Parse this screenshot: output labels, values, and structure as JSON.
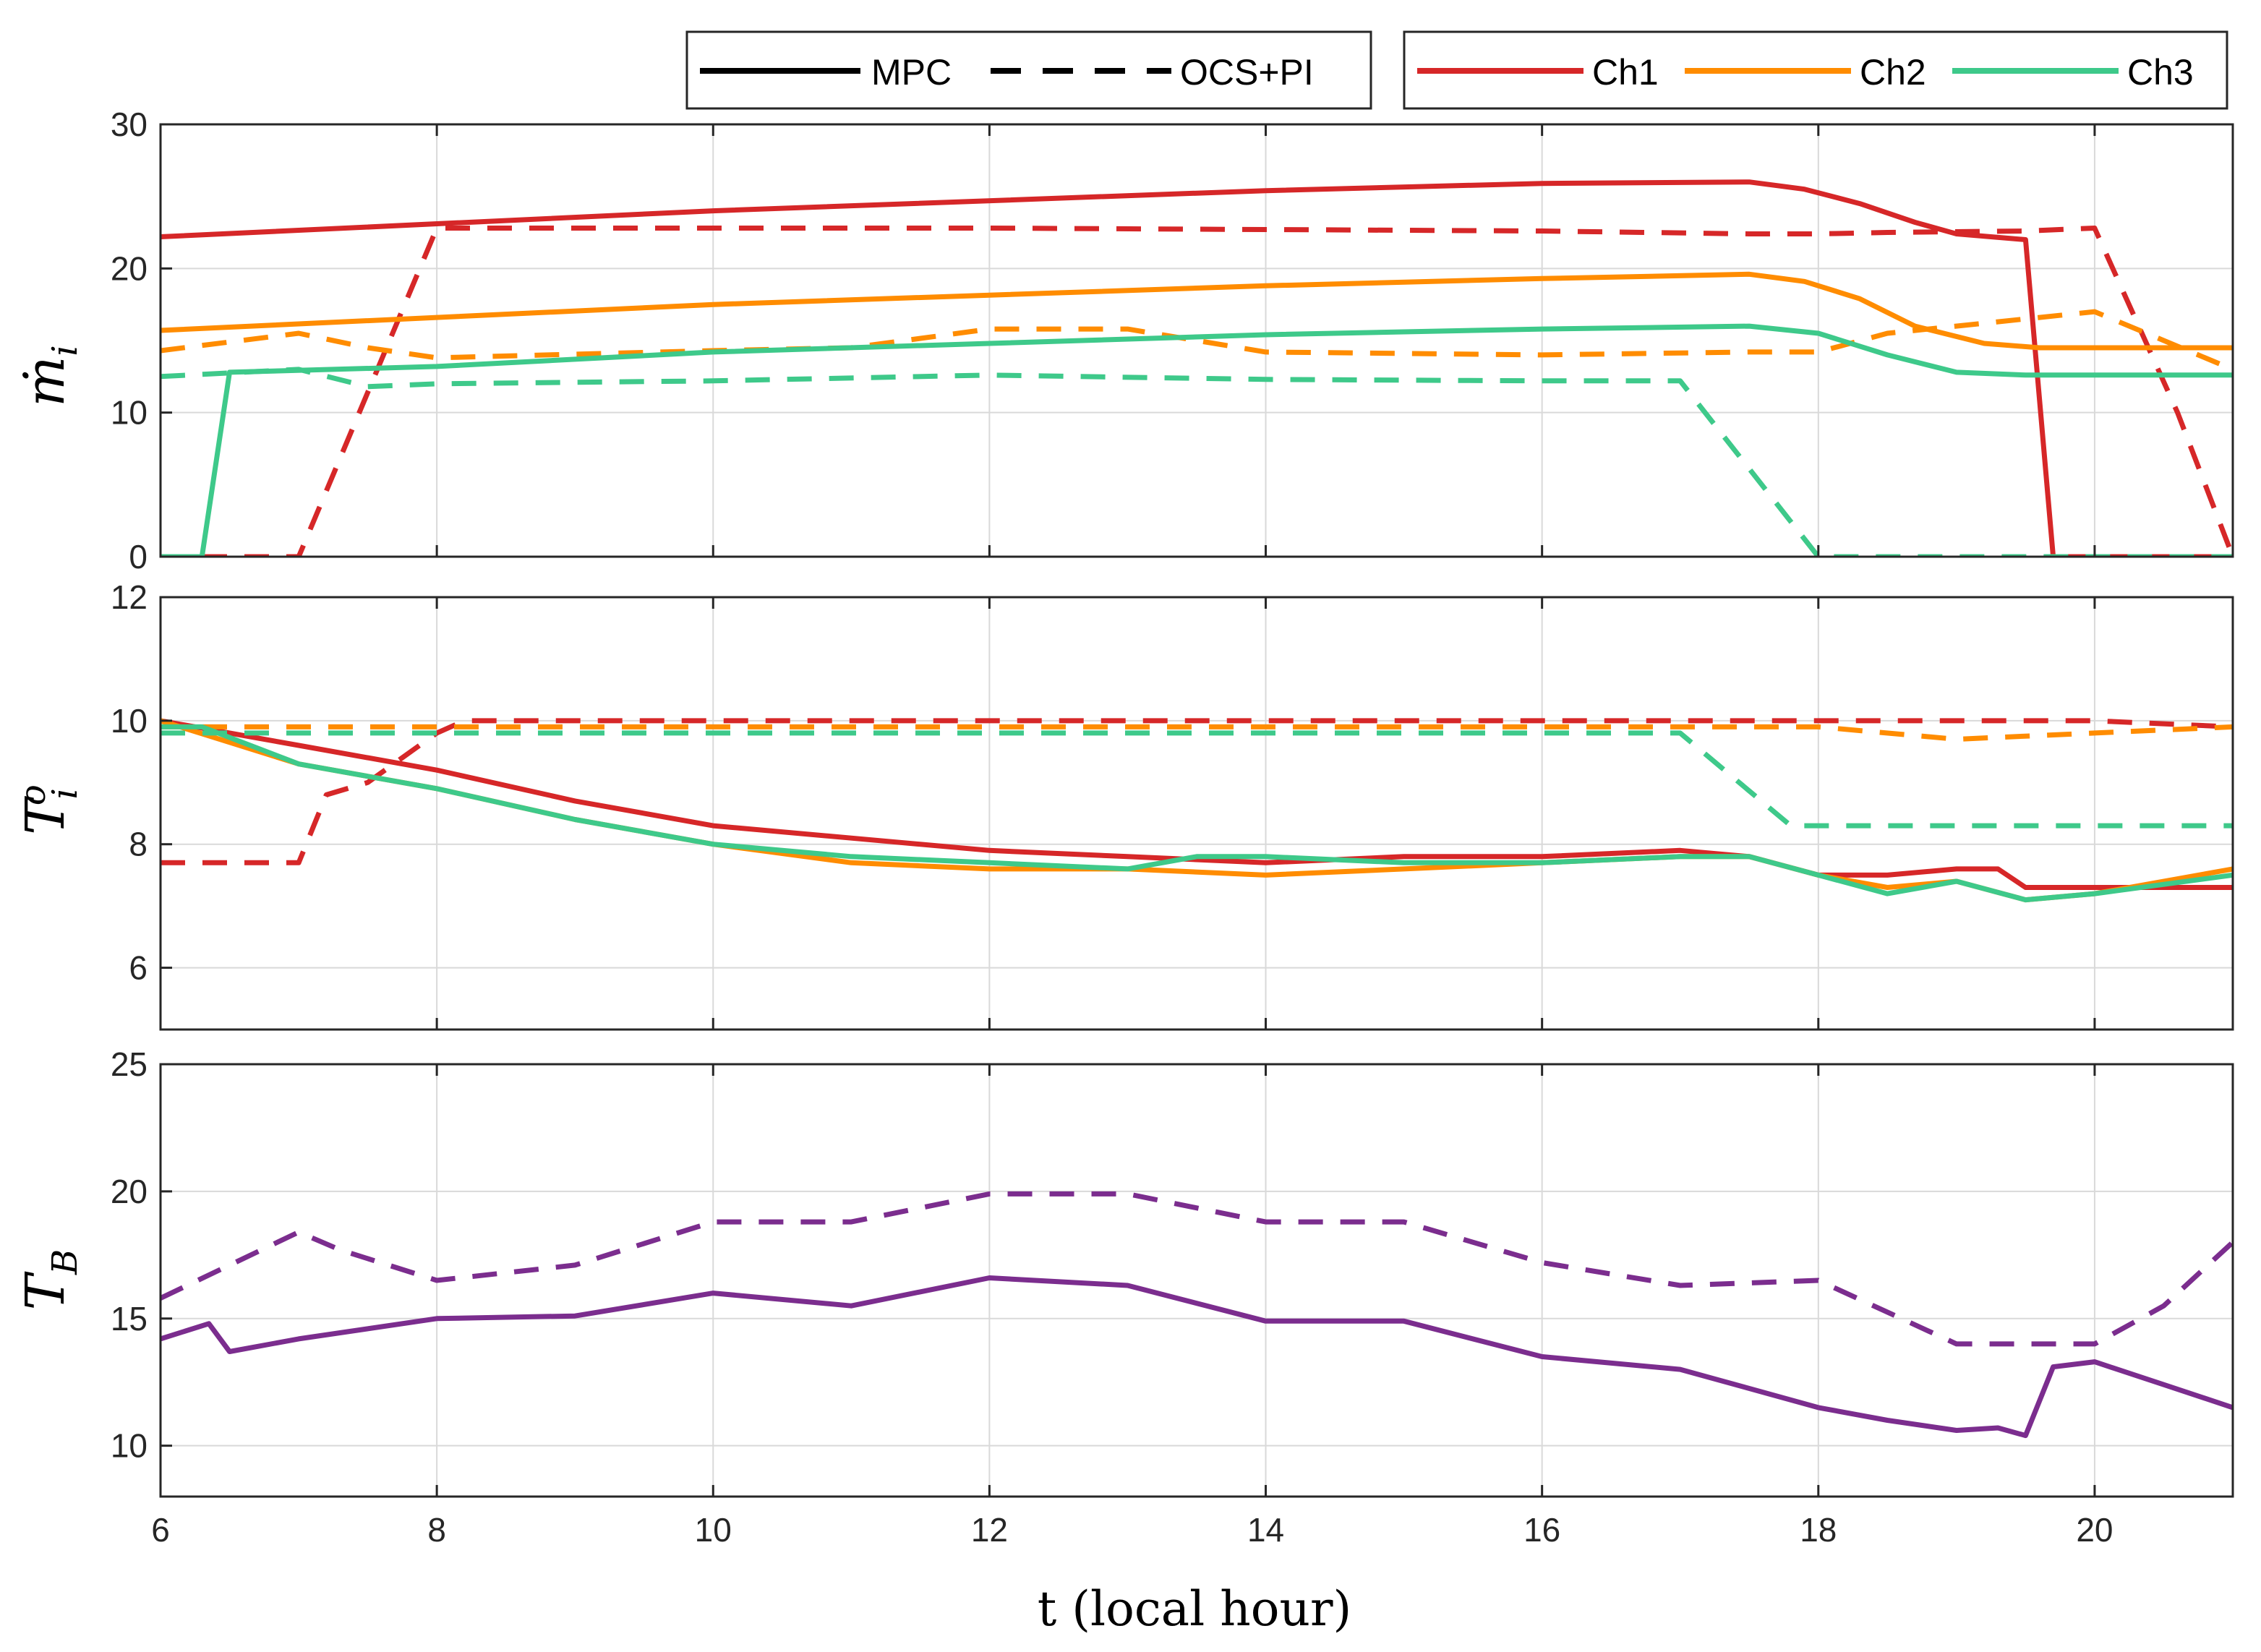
{
  "chart_data": {
    "type": "line",
    "xlabel": "t (local hour)",
    "xlim": [
      6,
      21
    ],
    "x_ticks": [
      6,
      8,
      10,
      12,
      14,
      16,
      18,
      20
    ],
    "legend": {
      "styles": [
        {
          "label": "MPC",
          "dash": "solid"
        },
        {
          "label": "OCS+PI",
          "dash": "dashed"
        }
      ],
      "channels": [
        {
          "label": "Ch1",
          "color": "#d62728"
        },
        {
          "label": "Ch2",
          "color": "#ff8c00"
        },
        {
          "label": "Ch3",
          "color": "#3ec98a"
        }
      ],
      "position": "top-right"
    },
    "subplots": [
      {
        "id": "flow",
        "ylabel": "ṁ",
        "ylabel_sub": "i",
        "ylim": [
          0,
          30
        ],
        "y_ticks": [
          0,
          10,
          20,
          30
        ],
        "series": [
          {
            "name": "Ch1 MPC",
            "color": "#d62728",
            "dash": "solid",
            "x": [
              6,
              10,
              14,
              16,
              17.5,
              17.9,
              18.3,
              18.7,
              19.0,
              19.5,
              19.7,
              21
            ],
            "y": [
              22.2,
              24.0,
              25.4,
              25.9,
              26.0,
              25.5,
              24.5,
              23.2,
              22.4,
              22.0,
              0,
              0
            ]
          },
          {
            "name": "Ch1 OCS+PI",
            "color": "#d62728",
            "dash": "dashed",
            "x": [
              6,
              7,
              8,
              10,
              12,
              14,
              16,
              17.5,
              18,
              18.5,
              19.5,
              20,
              20.6,
              21
            ],
            "y": [
              0,
              0,
              22.8,
              22.8,
              22.8,
              22.7,
              22.6,
              22.4,
              22.4,
              22.5,
              22.6,
              22.8,
              10,
              0
            ]
          },
          {
            "name": "Ch2 MPC",
            "color": "#ff8c00",
            "dash": "solid",
            "x": [
              6,
              10,
              14,
              16,
              17.5,
              17.9,
              18.3,
              18.7,
              19.2,
              19.6,
              21
            ],
            "y": [
              15.7,
              17.5,
              18.8,
              19.3,
              19.6,
              19.1,
              17.9,
              16.0,
              14.8,
              14.5,
              14.5
            ]
          },
          {
            "name": "Ch2 OCS+PI",
            "color": "#ff8c00",
            "dash": "dashed",
            "x": [
              6,
              7,
              7.5,
              8,
              10,
              11,
              12,
              13,
              13.5,
              14,
              16,
              17.5,
              18,
              18.5,
              19.5,
              20,
              20.5,
              21
            ],
            "y": [
              14.3,
              15.5,
              14.5,
              13.8,
              14.3,
              14.5,
              15.8,
              15.8,
              15.0,
              14.2,
              14.0,
              14.2,
              14.2,
              15.5,
              16.5,
              17.0,
              15.0,
              13.0
            ]
          },
          {
            "name": "Ch3 MPC",
            "color": "#3ec98a",
            "dash": "solid",
            "x": [
              6,
              6.3,
              6.5,
              8,
              10,
              12,
              14,
              16,
              17.5,
              18,
              18.5,
              19,
              19.5,
              21
            ],
            "y": [
              0,
              0,
              12.8,
              13.2,
              14.2,
              14.8,
              15.4,
              15.8,
              16.0,
              15.5,
              14.0,
              12.8,
              12.6,
              12.6
            ]
          },
          {
            "name": "Ch3 OCS+PI",
            "color": "#3ec98a",
            "dash": "dashed",
            "x": [
              6,
              7,
              7.5,
              8,
              10,
              12,
              14,
              16,
              17,
              18,
              19,
              20,
              21
            ],
            "y": [
              12.5,
              13.0,
              11.8,
              12.0,
              12.2,
              12.6,
              12.3,
              12.2,
              12.2,
              0,
              0,
              0,
              0
            ]
          }
        ]
      },
      {
        "id": "outlet-temp",
        "ylabel": "T",
        "ylabel_sub": "i",
        "ylabel_sup": "o",
        "ylim": [
          5,
          12
        ],
        "y_ticks": [
          6,
          8,
          10,
          12
        ],
        "series": [
          {
            "name": "Ch1 MPC",
            "color": "#d62728",
            "dash": "solid",
            "x": [
              6,
              7,
              8,
              9,
              10,
              11,
              12,
              13,
              14,
              15,
              16,
              17,
              17.5,
              18,
              18.5,
              19,
              19.3,
              19.5,
              20,
              21
            ],
            "y": [
              10.0,
              9.6,
              9.2,
              8.7,
              8.3,
              8.1,
              7.9,
              7.8,
              7.7,
              7.8,
              7.8,
              7.9,
              7.8,
              7.5,
              7.5,
              7.6,
              7.6,
              7.3,
              7.3,
              7.3
            ]
          },
          {
            "name": "Ch1 OCS+PI",
            "color": "#d62728",
            "dash": "dashed",
            "x": [
              6,
              7,
              7.2,
              7.5,
              8,
              8.2,
              10,
              12,
              14,
              16,
              18,
              20,
              21
            ],
            "y": [
              7.7,
              7.7,
              8.8,
              9.0,
              9.8,
              10.0,
              10.0,
              10.0,
              10.0,
              10.0,
              10.0,
              10.0,
              9.9
            ]
          },
          {
            "name": "Ch2 MPC",
            "color": "#ff8c00",
            "dash": "solid",
            "x": [
              6,
              7,
              8,
              9,
              10,
              11,
              12,
              13,
              14,
              15,
              16,
              17,
              17.5,
              18,
              18.5,
              19,
              19.5,
              20,
              21
            ],
            "y": [
              10.0,
              9.3,
              8.9,
              8.4,
              8.0,
              7.7,
              7.6,
              7.6,
              7.5,
              7.6,
              7.7,
              7.8,
              7.8,
              7.5,
              7.3,
              7.4,
              7.1,
              7.2,
              7.6
            ]
          },
          {
            "name": "Ch2 OCS+PI",
            "color": "#ff8c00",
            "dash": "dashed",
            "x": [
              6,
              8,
              10,
              12,
              14,
              16,
              17.5,
              18,
              19,
              20,
              21
            ],
            "y": [
              9.9,
              9.9,
              9.9,
              9.9,
              9.9,
              9.9,
              9.9,
              9.9,
              9.7,
              9.8,
              9.9
            ]
          },
          {
            "name": "Ch3 MPC",
            "color": "#3ec98a",
            "dash": "solid",
            "x": [
              6,
              6.3,
              7,
              8,
              9,
              10,
              11,
              12,
              13,
              13.5,
              14,
              15,
              16,
              17,
              17.5,
              18,
              18.5,
              19,
              19.5,
              20,
              21
            ],
            "y": [
              9.9,
              9.9,
              9.3,
              8.9,
              8.4,
              8.0,
              7.8,
              7.7,
              7.6,
              7.8,
              7.8,
              7.7,
              7.7,
              7.8,
              7.8,
              7.5,
              7.2,
              7.4,
              7.1,
              7.2,
              7.5
            ]
          },
          {
            "name": "Ch3 OCS+PI",
            "color": "#3ec98a",
            "dash": "dashed",
            "x": [
              6,
              8,
              10,
              12,
              14,
              16,
              17,
              17.8,
              18,
              20,
              21
            ],
            "y": [
              9.8,
              9.8,
              9.8,
              9.8,
              9.8,
              9.8,
              9.8,
              8.3,
              8.3,
              8.3,
              8.3
            ]
          }
        ]
      },
      {
        "id": "building-temp",
        "ylabel": "T",
        "ylabel_sub": "B",
        "ylim": [
          8,
          25
        ],
        "y_ticks": [
          10,
          15,
          20,
          25
        ],
        "series": [
          {
            "name": "MPC",
            "color": "#7b2d8e",
            "dash": "solid",
            "x": [
              6,
              6.35,
              6.5,
              7,
              8,
              9,
              10,
              11,
              12,
              13,
              14,
              15,
              16,
              17,
              18,
              18.5,
              19,
              19.3,
              19.5,
              19.7,
              20,
              20.5,
              21
            ],
            "y": [
              14.2,
              14.8,
              13.7,
              14.2,
              15.0,
              15.1,
              16.0,
              15.5,
              16.6,
              16.3,
              14.9,
              14.9,
              13.5,
              13.0,
              11.5,
              11.0,
              10.6,
              10.7,
              10.4,
              13.1,
              13.3,
              12.4,
              11.5
            ]
          },
          {
            "name": "OCS+PI",
            "color": "#7b2d8e",
            "dash": "dashed",
            "x": [
              6,
              7,
              7.3,
              8,
              9,
              10,
              11,
              12,
              13,
              14,
              15,
              16,
              17,
              18,
              19,
              20,
              20.5,
              21
            ],
            "y": [
              15.8,
              18.4,
              17.7,
              16.5,
              17.1,
              18.8,
              18.8,
              19.9,
              19.9,
              18.8,
              18.8,
              17.2,
              16.3,
              16.5,
              14.0,
              14.0,
              15.5,
              18.0
            ]
          }
        ]
      }
    ]
  }
}
